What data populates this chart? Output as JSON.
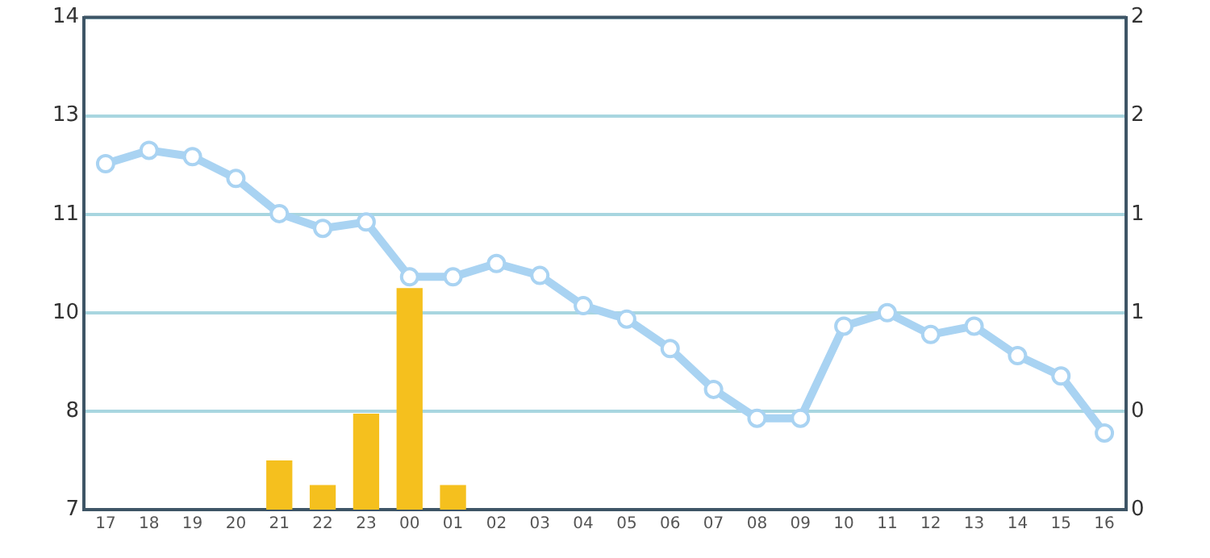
{
  "chart_data": {
    "type": "line",
    "categories": [
      "17",
      "18",
      "19",
      "20",
      "21",
      "22",
      "23",
      "00",
      "01",
      "02",
      "03",
      "04",
      "05",
      "06",
      "07",
      "08",
      "09",
      "10",
      "11",
      "12",
      "13",
      "14",
      "15",
      "16"
    ],
    "series": [
      {
        "type": "bar",
        "axis": "y2",
        "color": "#f5c01e",
        "values": [
          null,
          null,
          null,
          null,
          0.2,
          0.1,
          0.39,
          0.9,
          0.1,
          null,
          null,
          null,
          null,
          null,
          null,
          null,
          null,
          null,
          null,
          null,
          null,
          null,
          null,
          null
        ]
      },
      {
        "color": "#a9d3f2",
        "values": [
          11.92,
          12.11,
          12.02,
          11.71,
          11.21,
          11.0,
          11.09,
          10.31,
          10.31,
          10.5,
          10.33,
          9.9,
          9.71,
          9.29,
          8.71,
          8.3,
          8.3,
          9.61,
          9.8,
          9.49,
          9.61,
          9.19,
          8.9,
          8.09
        ]
      }
    ],
    "ylim": [
      7,
      14
    ],
    "yticks": [
      7,
      {
        "value": 8.4,
        "label": "8"
      },
      {
        "value": 9.8,
        "label": "10"
      },
      {
        "value": 11.2,
        "label": "11"
      },
      {
        "value": 12.6,
        "label": "13"
      },
      14
    ],
    "y2lim": [
      0,
      2
    ],
    "y2ticks": [
      0,
      {
        "value": 0.4,
        "label": "0"
      },
      {
        "value": 0.8,
        "label": "1"
      },
      {
        "value": 1.2,
        "label": "1"
      },
      {
        "value": 1.6,
        "label": "2"
      },
      2
    ],
    "grid": "y",
    "marker": "circle",
    "line_style": "solid"
  }
}
